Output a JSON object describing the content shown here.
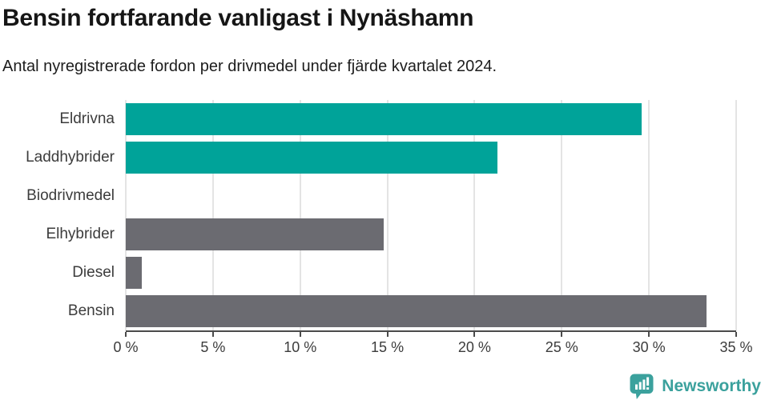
{
  "header": {
    "title": "Bensin fortfarande vanligast i Nynäshamn",
    "subtitle": "Antal nyregistrerade fordon per drivmedel under fjärde kvartalet 2024."
  },
  "chart_data": {
    "type": "bar",
    "orientation": "horizontal",
    "title": "Bensin fortfarande vanligast i Nynäshamn",
    "subtitle": "Antal nyregistrerade fordon per drivmedel under fjärde kvartalet 2024.",
    "categories": [
      "Eldrivna",
      "Laddhybrider",
      "Biodrivmedel",
      "Elhybrider",
      "Diesel",
      "Bensin"
    ],
    "values": [
      29.6,
      21.3,
      0,
      14.8,
      0.9,
      33.3
    ],
    "unit": "%",
    "xlim": [
      0,
      35
    ],
    "x_ticks": [
      0,
      5,
      10,
      15,
      20,
      25,
      30,
      35
    ],
    "x_tick_labels": [
      "0 %",
      "5 %",
      "10 %",
      "15 %",
      "20 %",
      "25 %",
      "30 %",
      "35 %"
    ],
    "grid": "vertical",
    "legend": "none",
    "bar_colors": [
      "#00a399",
      "#00a399",
      "#6b6b71",
      "#6b6b71",
      "#6b6b71",
      "#6b6b71"
    ],
    "highlight_color": "#00a399",
    "base_color": "#6b6b71",
    "gridline_color": "#e4e4e4",
    "axis_color": "#4b4b4b",
    "label_color": "#3c3c3c"
  },
  "footer": {
    "brand": "Newsworthy",
    "brand_color": "#3ba19d",
    "logo_icon": "bar-chart-speech-bubble-icon"
  }
}
